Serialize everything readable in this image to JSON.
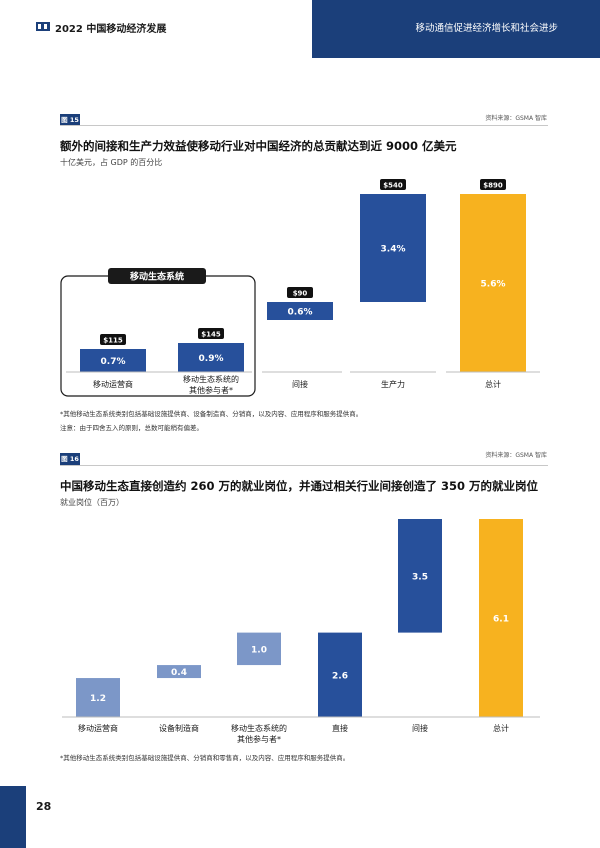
{
  "header": {
    "title": "2022 中国移动经济发展",
    "subtitle": "移动通信促进经济增长和社会进步"
  },
  "figure15": {
    "tag": "图 15",
    "source": "资料来源：GSMA 智库",
    "title": "额外的间接和生产力效益使移动行业对中国经济的总贡献达到近 9000 亿美元",
    "unit": "十亿美元，占 GDP 的百分比",
    "group_label": "移动生态系统",
    "notes": [
      "*其他移动生态系统类别包括基础设施提供商、设备制造商、分销商，以及内容、应用程序和服务提供商。",
      "注意：由于四舍五入的原则，总数可能稍有偏差。"
    ]
  },
  "figure16": {
    "tag": "图 16",
    "source": "资料来源：GSMA 智库",
    "title": "中国移动生态直接创造约 260 万的就业岗位，并通过相关行业间接创造了 350 万的就业岗位",
    "unit": "就业岗位（百万）",
    "notes": [
      "*其他移动生态系统类别包括基础设施提供商、分销商和零售商，以及内容、应用程序和服务提供商。"
    ]
  },
  "page_number": "28",
  "colors": {
    "navy": "#1b3f7a",
    "blue": "#27509b",
    "light_blue": "#7a97c9",
    "gold": "#f7b21f"
  },
  "chart_data": [
    {
      "type": "bar",
      "subtype": "waterfall",
      "categories": [
        "移动运营商",
        "移动生态系统的其他参与者*",
        "间接",
        "生产力",
        "总计"
      ],
      "values": [
        115,
        145,
        90,
        540,
        890
      ],
      "pct_gdp_labels": [
        "0.7%",
        "0.9%",
        "0.6%",
        "3.4%",
        "5.6%"
      ],
      "value_labels": [
        "$115",
        "$145",
        "$90",
        "$540",
        "$890"
      ],
      "bases": [
        0,
        0,
        260,
        350,
        0
      ],
      "total_index": 4,
      "ylim": [
        0,
        890
      ]
    },
    {
      "type": "bar",
      "subtype": "waterfall",
      "categories": [
        "移动运营商",
        "设备制造商",
        "移动生态系统的其他参与者*",
        "直接",
        "间接",
        "总计"
      ],
      "values": [
        1.2,
        0.4,
        1.0,
        2.6,
        3.5,
        6.1
      ],
      "value_labels": [
        "1.2",
        "0.4",
        "1.0",
        "2.6",
        "3.5",
        "6.1"
      ],
      "bases": [
        0,
        1.2,
        1.6,
        0,
        2.6,
        0
      ],
      "subtotal_index": 3,
      "total_index": 5,
      "ylim": [
        0,
        6.1
      ]
    }
  ]
}
